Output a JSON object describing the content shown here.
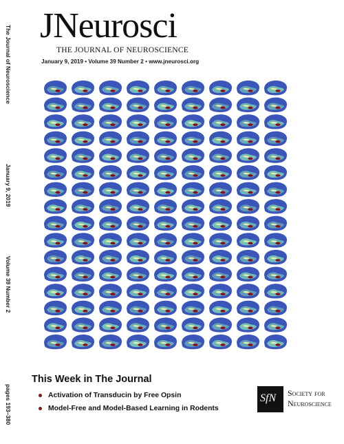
{
  "spine": {
    "journal": "The Journal of Neuroscience",
    "date": "January 9, 2019",
    "volume": "Volume 39 Number 2",
    "pages": "pages 193–380"
  },
  "masthead": {
    "logo": "JNeurosci",
    "subtitle": "THE JOURNAL OF NEUROSCIENCE",
    "issue_line": "January 9, 2019 • Volume 39 Number 2 • www.jneurosci.org"
  },
  "cover_image": {
    "description_icon": "brain-surface-grid",
    "rows": 16,
    "columns": 9,
    "colors": {
      "base": "#3a56b8",
      "mid": "#7fd0b8",
      "light": "#e8f0a8",
      "highlight": "#8a0a14"
    }
  },
  "this_week": {
    "heading": "This Week in The Journal",
    "items": [
      "Activation of Transducin by Free Opsin",
      "Model-Free and Model-Based Learning in Rodents"
    ]
  },
  "society": {
    "mark": "SfN",
    "name_line1": "Society for",
    "name_line2": "Neuroscience"
  }
}
